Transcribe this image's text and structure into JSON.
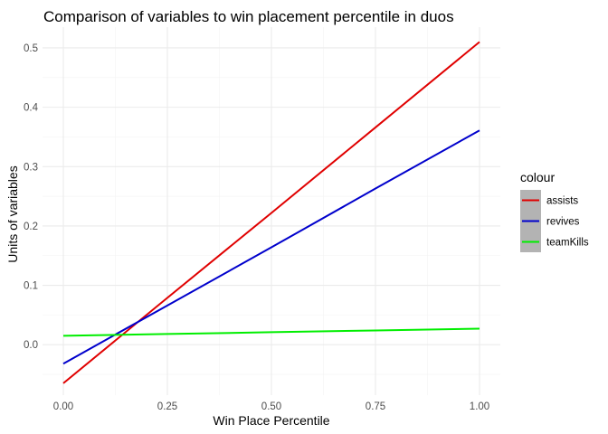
{
  "chart_data": {
    "type": "line",
    "title": "Comparison of variables to win placement percentile in duos",
    "xlabel": "Win Place Percentile",
    "ylabel": "Units of variables",
    "xlim": [
      -0.05,
      1.05
    ],
    "ylim": [
      -0.085,
      0.535
    ],
    "x_ticks": [
      0.0,
      0.25,
      0.5,
      0.75,
      1.0
    ],
    "x_tick_labels": [
      "0.00",
      "0.25",
      "0.50",
      "0.75",
      "1.00"
    ],
    "y_ticks": [
      0.0,
      0.1,
      0.2,
      0.3,
      0.4,
      0.5
    ],
    "y_tick_labels": [
      "0.0",
      "0.1",
      "0.2",
      "0.3",
      "0.4",
      "0.5"
    ],
    "grid": true,
    "legend": {
      "title": "colour",
      "placement": "right"
    },
    "series": [
      {
        "name": "assists",
        "color": "#e00000",
        "x": [
          0.0,
          0.25,
          0.5,
          0.75,
          1.0
        ],
        "values": [
          -0.065,
          0.079,
          0.222,
          0.366,
          0.51
        ]
      },
      {
        "name": "revives",
        "color": "#0000cc",
        "x": [
          0.0,
          0.25,
          0.5,
          0.75,
          1.0
        ],
        "values": [
          -0.032,
          0.066,
          0.164,
          0.263,
          0.361
        ]
      },
      {
        "name": "teamKills",
        "color": "#00ee00",
        "x": [
          0.0,
          0.25,
          0.5,
          0.75,
          1.0
        ],
        "values": [
          0.015,
          0.018,
          0.021,
          0.024,
          0.027
        ]
      }
    ]
  }
}
